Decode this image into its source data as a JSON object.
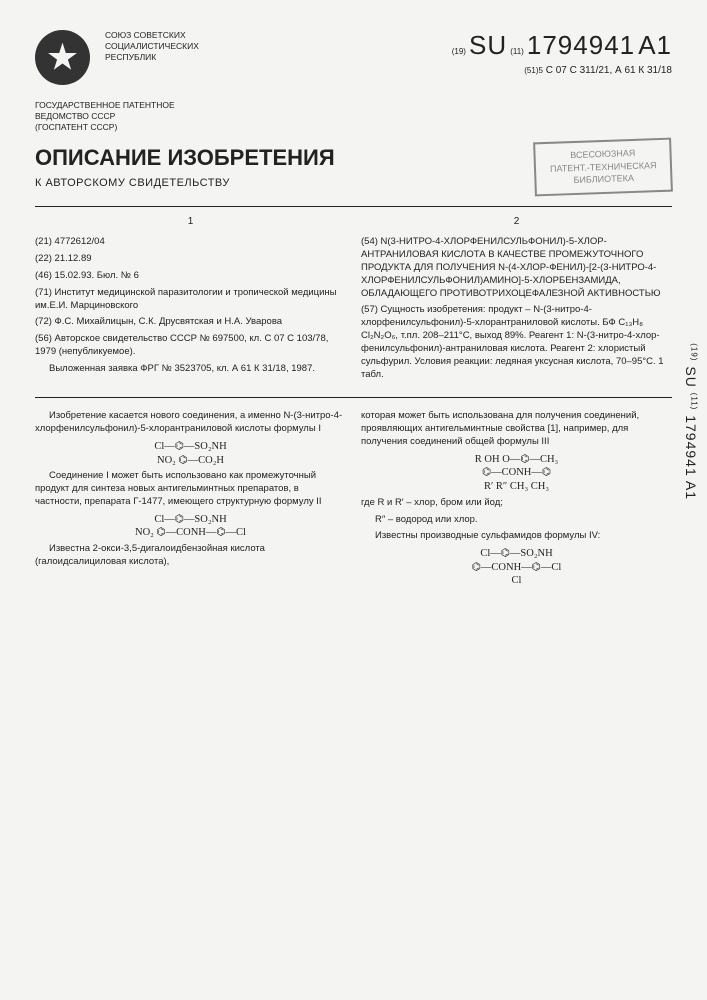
{
  "header": {
    "union_text": "СОЮЗ СОВЕТСКИХ\nСОЦИАЛИСТИЧЕСКИХ\nРЕСПУБЛИК",
    "country_code_prefix": "(19)",
    "country_code": "SU",
    "number_prefix": "(11)",
    "patent_number": "1794941",
    "kind_code": "A1",
    "classification_prefix": "(51)5",
    "classification": "С 07 С 311/21, А 61 К 31/18",
    "agency": "ГОСУДАРСТВЕННОЕ ПАТЕНТНОЕ\nВЕДОМСТВО СССР\n(ГОСПАТЕНТ СССР)"
  },
  "title": {
    "main": "ОПИСАНИЕ ИЗОБРЕТЕНИЯ",
    "subtitle": "К АВТОРСКОМУ СВИДЕТЕЛЬСТВУ"
  },
  "stamp": {
    "line1": "ВСЕСОЮЗНАЯ",
    "line2": "ПАТЕНТ.-ТЕХНИЧЕСКАЯ",
    "line3": "БИБЛИОТЕКА"
  },
  "biblio": {
    "col1_num": "1",
    "col2_num": "2",
    "app_number": "(21) 4772612/04",
    "filing_date": "(22) 21.12.89",
    "pub_date": "(46) 15.02.93. Бюл. № 6",
    "applicant": "(71) Институт медицинской паразитологии и тропической медицины им.Е.И. Марциновского",
    "inventors": "(72) Ф.С. Михайлицын, С.К. Друсвятская и Н.А. Уварова",
    "prior_art": "(56) Авторское свидетельство СССР № 697500, кл. С 07 С 103/78, 1979 (непубликуемое).",
    "prior_art2": "Выложенная заявка ФРГ № 3523705, кл. А 61 К 31/18, 1987.",
    "abstract_title": "(54) N(3-НИТРО-4-ХЛОРФЕНИЛСУЛЬФОНИЛ)-5-ХЛОР-АНТРАНИЛОВАЯ КИСЛОТА В КАЧЕСТВЕ ПРОМЕЖУТОЧНОГО ПРОДУКТА ДЛЯ ПОЛУЧЕНИЯ N-(4-ХЛОР-ФЕНИЛ)-[2-(3-НИТРО-4-ХЛОРФЕНИЛСУЛЬФОНИЛ)АМИНО]-5-ХЛОРБЕНЗАМИДА, ОБЛАДАЮЩЕГО ПРОТИВОТРИХОЦЕФАЛЕЗНОЙ АКТИВНОСТЬЮ",
    "abstract_body": "(57) Сущность изобретения: продукт – N-(3-нитро-4-хлорфенилсульфонил)-5-хлорантраниловой кислоты. БФ C₁₃H₈ Cl₂N₂O₆, т.пл. 208–211°C, выход 89%. Реагент 1: N-(3-нитро-4-хлор-фенилсульфонил)-антраниловая кислота. Реагент 2: хлористый сульфурил. Условия реакции: ледяная уксусная кислота, 70–95°C. 1 табл."
  },
  "body": {
    "left": {
      "p1": "Изобретение касается нового соединения, а именно N-(3-нитро-4-хлорфенилсульфонил)-5-хлорантраниловой кислоты формулы I",
      "formula1_line1": "Cl—⌬—SO₂NH",
      "formula1_line2": "NO₂    ⌬—CO₂H",
      "p2": "Соединение I может быть использовано как промежуточный продукт для синтеза новых антигельминтных препаратов, в частности, препарата Г-1477, имеющего структурную формулу II",
      "formula2_line1": "Cl—⌬—SO₂NH",
      "formula2_line2": "NO₂    ⌬—CONH—⌬—Cl",
      "p3": "Известна 2-окси-3,5-дигалоидбензойная кислота (галоидсалициловая кислота),"
    },
    "right": {
      "p1": "которая может быть использована для получения соединений, проявляющих антигельминтные свойства [1], например, для получения соединений общей формулы III",
      "formula3_line1": "R   OH        O—⌬—CH₃",
      "formula3_line2": "⌬—CONH—⌬",
      "formula3_line3": "R′        R″   CH₃  CH₃",
      "p2": "где R и R′ – хлор, бром или йод;",
      "p3": "R″ – водород или хлор.",
      "p4": "Известны производные сульфамидов формулы IV:",
      "formula4_line1": "Cl—⌬—SO₂NH",
      "formula4_line2": "       ⌬—CONH—⌬—Cl",
      "formula4_line3": "       Cl"
    }
  },
  "side": {
    "prefix1": "(19)",
    "su": "SU",
    "prefix2": "(11)",
    "number": "1794941",
    "kind": "A1"
  },
  "colors": {
    "bg": "#f4f4f2",
    "text": "#222",
    "stamp": "#888"
  }
}
